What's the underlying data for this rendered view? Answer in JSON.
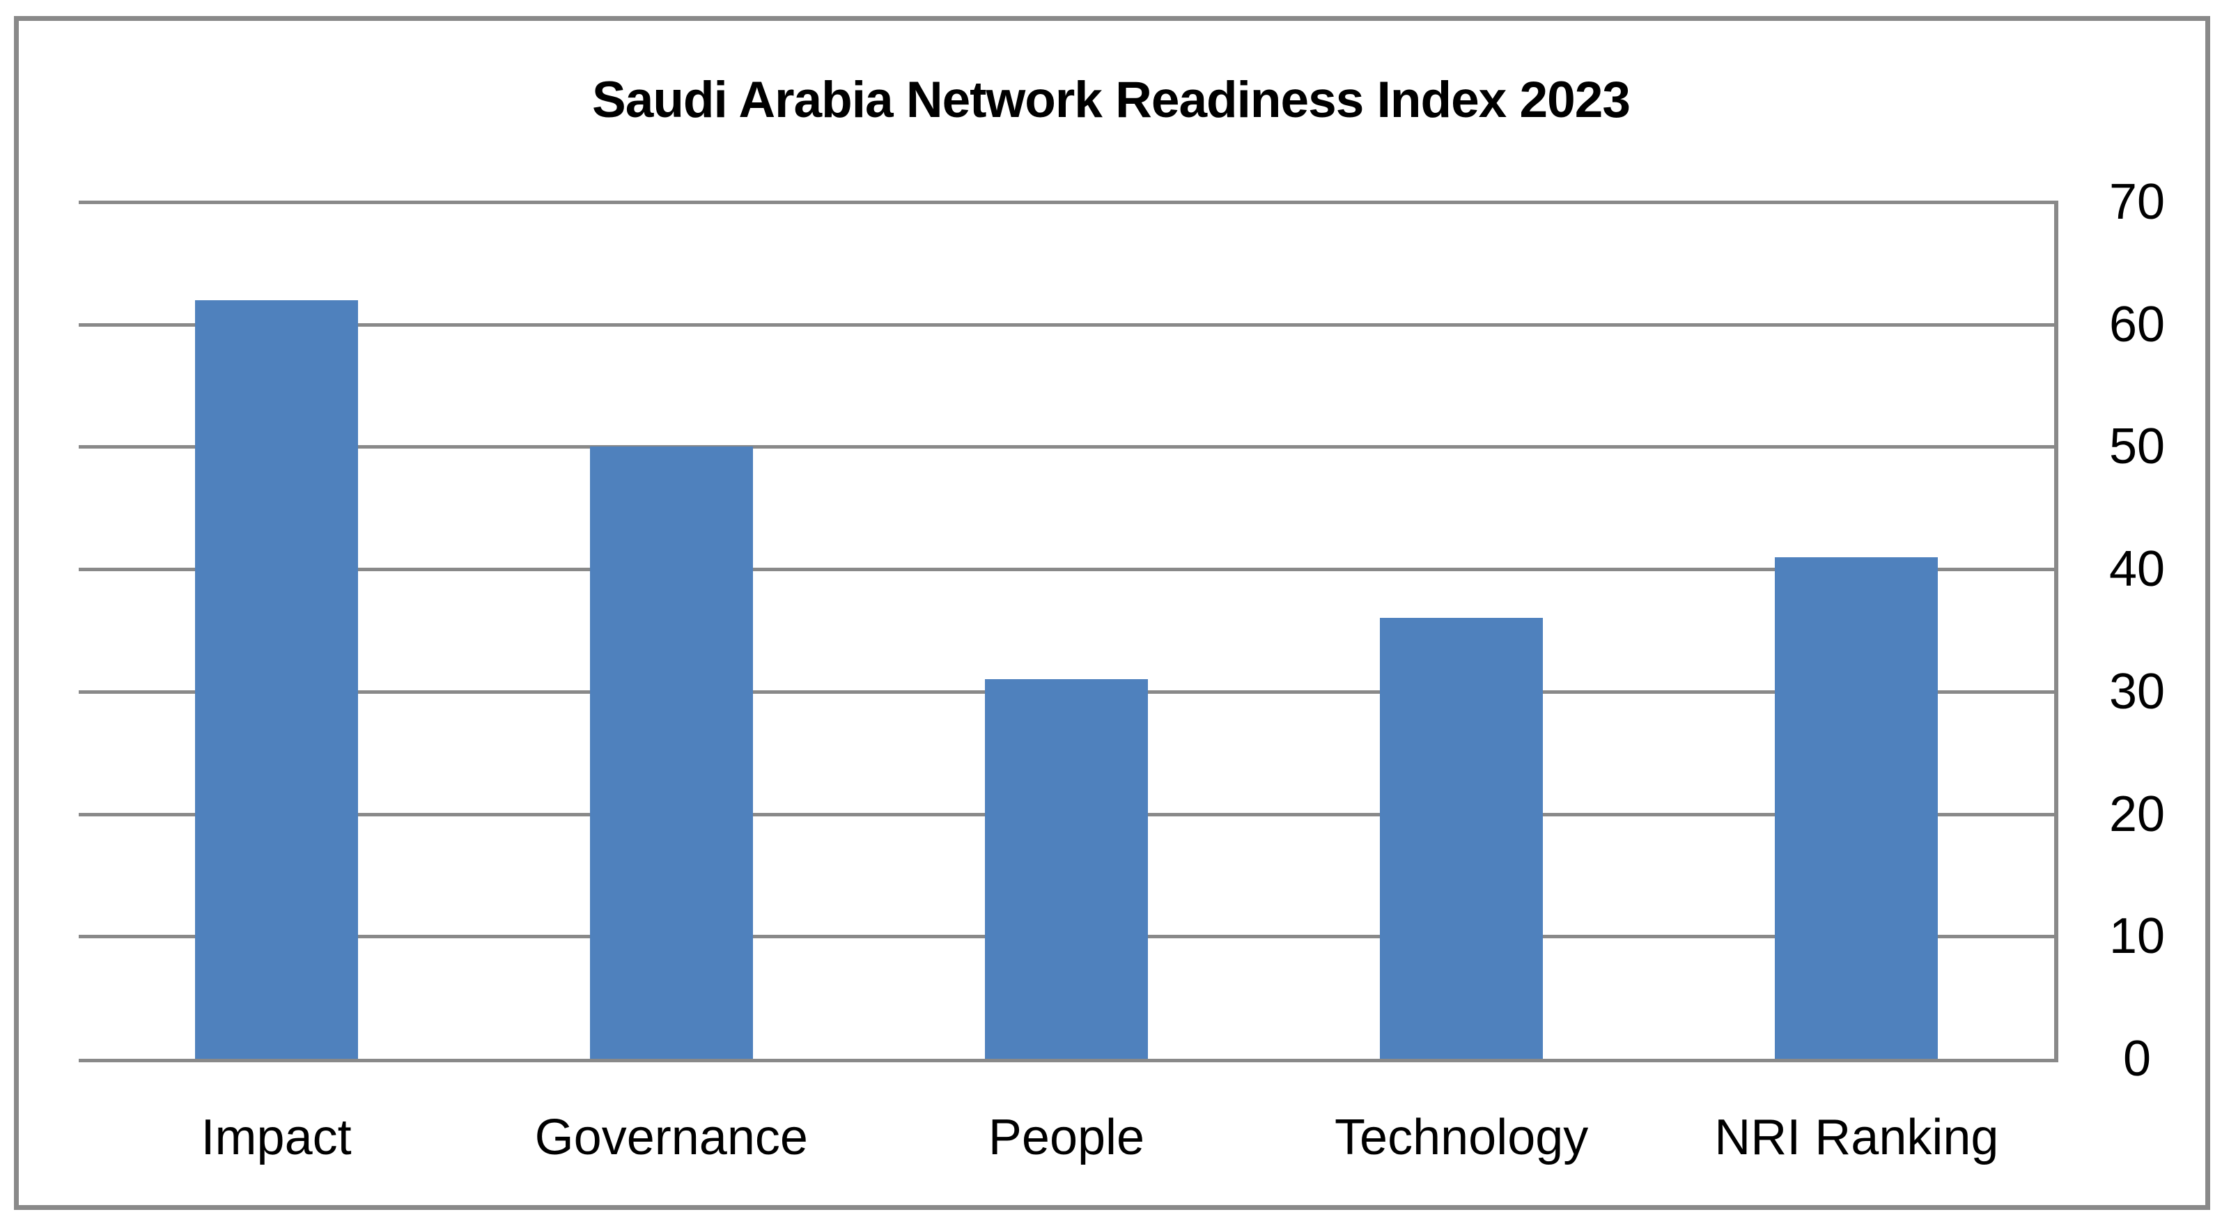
{
  "title": "Saudi Arabia Network Readiness Index 2023",
  "chart_data": {
    "type": "bar",
    "title": "Saudi Arabia Network Readiness Index 2023",
    "categories": [
      "Impact",
      "Governance",
      "People",
      "Technology",
      "NRI Ranking"
    ],
    "values": [
      62,
      50,
      31,
      36,
      41
    ],
    "xlabel": "",
    "ylabel": "",
    "ylim": [
      0,
      70
    ],
    "yticks": [
      0,
      10,
      20,
      30,
      40,
      50,
      60,
      70
    ],
    "y_axis_side": "right",
    "grid": true,
    "legend": false,
    "bar_color": "#4F81BD",
    "gridline_color": "#898989",
    "frame_color": "#898989",
    "text_color": "#000000",
    "background_color": "#FFFFFF"
  }
}
